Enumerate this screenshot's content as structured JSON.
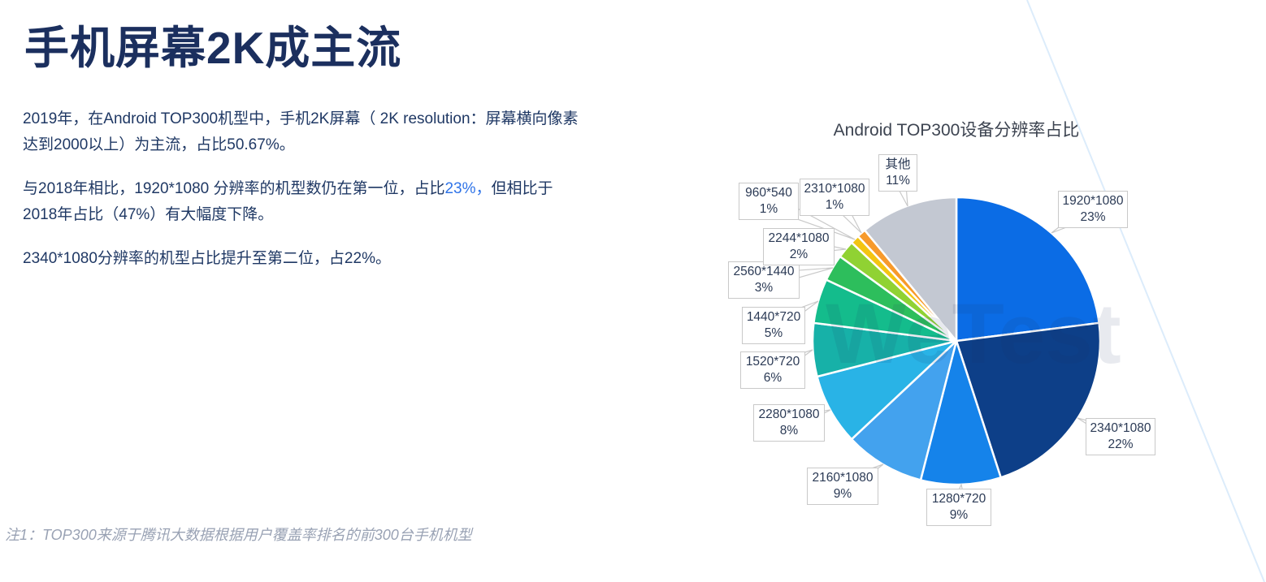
{
  "page": {
    "title": "手机屏幕2K成主流",
    "paragraphs": {
      "p1_line1": "2019年，在Android TOP300机型中，手机2K屏幕（ 2K resolution：屏幕横向像素",
      "p1_line2": "达到2000以上）为主流，占比50.67%。",
      "p2_line1_before": "与2018年相比，1920*1080 分辨率的机型数仍在第一位，占比",
      "p2_highlight": "23%，",
      "p2_line1_after": "但相比于",
      "p2_line2": "2018年占比（47%）有大幅度下降。",
      "p3": "2340*1080分辨率的机型占比提升至第二位，占22%。"
    },
    "footnote": "注1：TOP300来源于腾讯大数据根据用户覆盖率排名的前300台手机机型",
    "watermark": "WeTest"
  },
  "colors": {
    "heading": "#1b2f5e",
    "body": "#1f3864",
    "highlight": "#2e73e8",
    "footnote": "#99a2b4",
    "chart_title": "#3d4451",
    "callout_border": "#c9c9c9",
    "watermark": "rgba(27,47,94,0.10)",
    "decor_line": "#dcecfb"
  },
  "chart_data": {
    "type": "pie",
    "title": "Android TOP300设备分辨率占比",
    "start_at": "12-o-clock",
    "direction": "clockwise",
    "legend": "none, callout data labels",
    "slices": [
      {
        "label": "1920*1080",
        "pct": 23,
        "color": "#0b6ce5"
      },
      {
        "label": "2340*1080",
        "pct": 22,
        "color": "#0d3f88"
      },
      {
        "label": "1280*720",
        "pct": 9,
        "color": "#1583ea"
      },
      {
        "label": "2160*1080",
        "pct": 9,
        "color": "#43a2ee"
      },
      {
        "label": "2280*1080",
        "pct": 8,
        "color": "#29b3e6"
      },
      {
        "label": "1520*720",
        "pct": 6,
        "color": "#17b1a8"
      },
      {
        "label": "1440*720",
        "pct": 5,
        "color": "#14bc8c"
      },
      {
        "label": "2560*1440",
        "pct": 3,
        "color": "#2dbe5c"
      },
      {
        "label": "2244*1080",
        "pct": 2,
        "color": "#90d233"
      },
      {
        "label": "960*540",
        "pct": 1,
        "color": "#f3c412"
      },
      {
        "label": "2310*1080",
        "pct": 1,
        "color": "#f79a2b"
      },
      {
        "label": "其他",
        "pct": 11,
        "color": "#c3c8d2"
      }
    ]
  }
}
